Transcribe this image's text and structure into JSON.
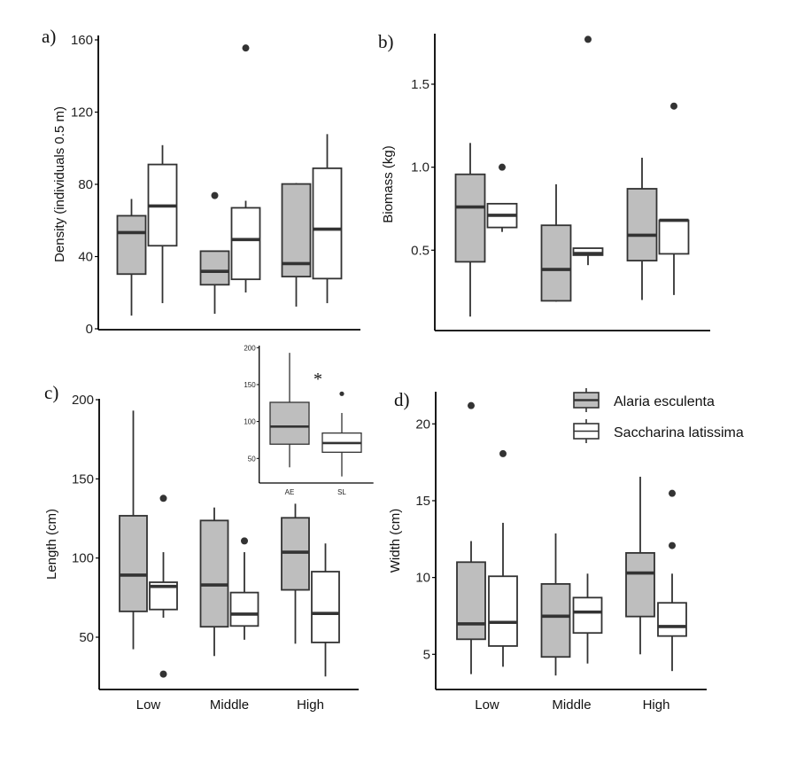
{
  "colors": {
    "alaria_fill": "#bebebe",
    "saccharina_fill": "#ffffff",
    "stroke": "#333333",
    "axis": "#000000"
  },
  "legend": {
    "items": [
      {
        "label": "Alaria esculenta",
        "key": "AE"
      },
      {
        "label": "Saccharina latissima",
        "key": "SL"
      }
    ]
  },
  "chart_data": [
    {
      "type": "box",
      "panel_label": "a)",
      "ylabel": "Density (individuals 0.5 m)",
      "ylim": [
        0,
        165
      ],
      "yticks": [
        0,
        40,
        80,
        120,
        160
      ],
      "categories": [
        "Low",
        "Middle",
        "High"
      ],
      "show_xticks": false,
      "series": [
        {
          "name": "Alaria esculenta",
          "boxes": [
            {
              "min": 7.3,
              "q1": 30.3,
              "median": 53.3,
              "q3": 62.6,
              "max": 71.9,
              "outliers": []
            },
            {
              "min": 8.3,
              "q1": 24.4,
              "median": 31.8,
              "q3": 43,
              "max": 43,
              "outliers": [
                73.8
              ]
            },
            {
              "min": 12.3,
              "q1": 28.9,
              "median": 36.1,
              "q3": 80.2,
              "max": 80.7,
              "outliers": []
            }
          ]
        },
        {
          "name": "Saccharina latissima",
          "boxes": [
            {
              "min": 14.2,
              "q1": 46,
              "median": 68,
              "q3": 91,
              "max": 101.7,
              "outliers": []
            },
            {
              "min": 20.1,
              "q1": 27.4,
              "median": 49.4,
              "q3": 67,
              "max": 70.9,
              "outliers": [
                155.5
              ]
            },
            {
              "min": 14.2,
              "q1": 27.8,
              "median": 55.2,
              "q3": 88.9,
              "max": 107.8,
              "outliers": []
            }
          ]
        }
      ]
    },
    {
      "type": "box",
      "panel_label": "b)",
      "ylabel": "Biomass (kg)",
      "ylim": [
        0.05,
        1.81
      ],
      "yticks": [
        0.5,
        1.0,
        1.5
      ],
      "ytick_labels": [
        "0.5",
        "1.0",
        "1.5"
      ],
      "categories": [
        "Low",
        "Middle",
        "High"
      ],
      "show_xticks": false,
      "series": [
        {
          "name": "Alaria esculenta",
          "boxes": [
            {
              "min": 0.1,
              "q1": 0.43,
              "median": 0.76,
              "q3": 0.957,
              "max": 1.146,
              "outliers": []
            },
            {
              "min": 0.19,
              "q1": 0.195,
              "median": 0.384,
              "q3": 0.65,
              "max": 0.897,
              "outliers": []
            },
            {
              "min": 0.2,
              "q1": 0.437,
              "median": 0.59,
              "q3": 0.87,
              "max": 1.057,
              "outliers": []
            }
          ]
        },
        {
          "name": "Saccharina latissima",
          "boxes": [
            {
              "min": 0.61,
              "q1": 0.637,
              "median": 0.71,
              "q3": 0.78,
              "max": 0.78,
              "outliers": [
                1.0
              ]
            },
            {
              "min": 0.41,
              "q1": 0.47,
              "median": 0.48,
              "q3": 0.512,
              "max": 0.515,
              "outliers": [
                1.77
              ]
            },
            {
              "min": 0.23,
              "q1": 0.478,
              "median": 0.68,
              "q3": 0.68,
              "max": 0.68,
              "outliers": [
                1.368
              ]
            }
          ]
        }
      ]
    },
    {
      "type": "box",
      "panel_label": "c)",
      "ylabel": "Length (cm)",
      "ylim": [
        16,
        200
      ],
      "yticks": [
        50,
        100,
        150,
        200
      ],
      "categories": [
        "Low",
        "Middle",
        "High"
      ],
      "show_xticks": true,
      "series": [
        {
          "name": "Alaria esculenta",
          "boxes": [
            {
              "min": 42.4,
              "q1": 66.3,
              "median": 89.2,
              "q3": 126.7,
              "max": 193.1,
              "outliers": []
            },
            {
              "min": 38.1,
              "q1": 56.6,
              "median": 83,
              "q3": 123.7,
              "max": 131.9,
              "outliers": []
            },
            {
              "min": 45.9,
              "q1": 79.9,
              "median": 103.7,
              "q3": 125.4,
              "max": 134.3,
              "outliers": []
            }
          ]
        },
        {
          "name": "Saccharina latissima",
          "boxes": [
            {
              "min": 62.3,
              "q1": 67.5,
              "median": 82.1,
              "q3": 84.7,
              "max": 103.7,
              "outliers": [
                137.7,
                26.7
              ]
            },
            {
              "min": 48.4,
              "q1": 57.1,
              "median": 64.6,
              "q3": 78.2,
              "max": 103.7,
              "outliers": [
                110.8
              ]
            },
            {
              "min": 25.2,
              "q1": 46.7,
              "median": 65,
              "q3": 91.4,
              "max": 109.2,
              "outliers": []
            }
          ]
        }
      ],
      "inset": {
        "type": "box",
        "ylim": [
          16,
          200
        ],
        "yticks": [
          50,
          100,
          150,
          200
        ],
        "categories": [
          "AE",
          "SL"
        ],
        "annotation": "*",
        "boxes": [
          {
            "name": "Alaria esculenta",
            "min": 38,
            "q1": 69.3,
            "median": 93.2,
            "q3": 126,
            "max": 193,
            "outliers": []
          },
          {
            "name": "Saccharina latissima",
            "min": 25.6,
            "q1": 58.4,
            "median": 70.8,
            "q3": 84.4,
            "max": 111.6,
            "outliers": [
              137.6
            ]
          }
        ]
      }
    },
    {
      "type": "box",
      "panel_label": "d)",
      "ylabel": "Width (cm)",
      "ylim": [
        2.5,
        21.8
      ],
      "yticks": [
        5,
        10,
        15,
        20
      ],
      "categories": [
        "Low",
        "Middle",
        "High"
      ],
      "show_xticks": true,
      "legend_position": "top-right",
      "series": [
        {
          "name": "Alaria esculenta",
          "boxes": [
            {
              "min": 3.71,
              "q1": 5.98,
              "median": 6.98,
              "q3": 11.0,
              "max": 12.37,
              "outliers": [
                21.19
              ]
            },
            {
              "min": 3.62,
              "q1": 4.83,
              "median": 7.48,
              "q3": 9.58,
              "max": 12.87,
              "outliers": []
            },
            {
              "min": 5.0,
              "q1": 7.46,
              "median": 10.29,
              "q3": 11.6,
              "max": 16.56,
              "outliers": []
            }
          ]
        },
        {
          "name": "Saccharina latissima",
          "boxes": [
            {
              "min": 4.19,
              "q1": 5.54,
              "median": 7.08,
              "q3": 10.08,
              "max": 13.56,
              "outliers": [
                18.06
              ]
            },
            {
              "min": 4.4,
              "q1": 6.39,
              "median": 7.75,
              "q3": 8.69,
              "max": 10.25,
              "outliers": []
            },
            {
              "min": 3.91,
              "q1": 6.19,
              "median": 6.81,
              "q3": 8.35,
              "max": 10.25,
              "outliers": [
                15.48,
                12.08
              ]
            }
          ]
        }
      ]
    }
  ]
}
